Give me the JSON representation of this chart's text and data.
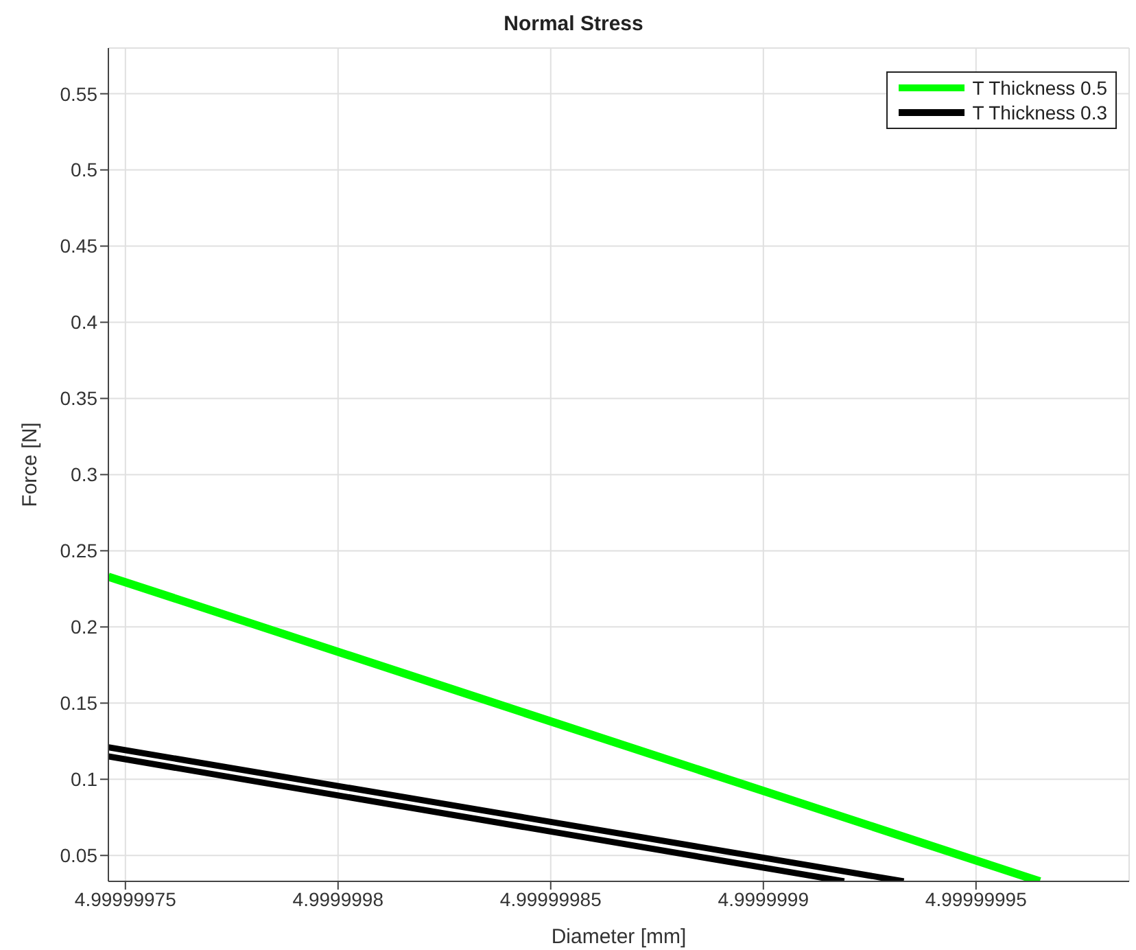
{
  "chart_data": {
    "type": "line",
    "title": "Normal Stress",
    "xlabel": "Diameter [mm]",
    "ylabel": "Force [N]",
    "series": [
      {
        "name": "T Thickness 0.5",
        "color": "#00ff00",
        "x": [
          4.999999746,
          4.999999965
        ],
        "values": [
          0.233,
          0.033
        ]
      },
      {
        "name": "T Thickness 0.3",
        "color": "#000000",
        "x": [
          4.999999746,
          4.999999933
        ],
        "values": [
          0.121,
          0.033
        ]
      },
      {
        "color": "#000000",
        "x": [
          4.999999746,
          4.999999919
        ],
        "values": [
          0.115,
          0.033
        ]
      }
    ],
    "xlim": [
      4.999999746,
      4.999999986
    ],
    "xticks": [
      4.99999975,
      4.9999998,
      4.99999985,
      4.9999999,
      4.99999995
    ],
    "ylim": [
      0.033,
      0.58
    ],
    "yticks": [
      0.05,
      0.1,
      0.15,
      0.2,
      0.25,
      0.3,
      0.35,
      0.4,
      0.45,
      0.5,
      0.55
    ],
    "grid": true,
    "legend": "top right",
    "line_style": "solid"
  }
}
